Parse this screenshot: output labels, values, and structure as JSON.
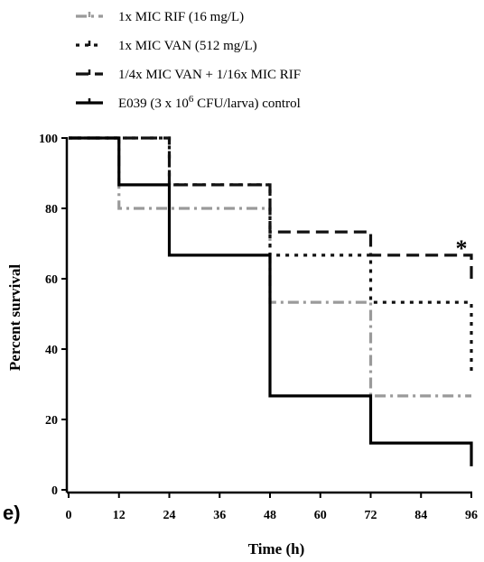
{
  "chart_data": {
    "type": "line",
    "step": true,
    "panel_label": "e)",
    "xlabel": "Time (h)",
    "ylabel": "Percent survival",
    "xlim": [
      0,
      96
    ],
    "ylim": [
      0,
      100
    ],
    "xticks": [
      0,
      12,
      24,
      36,
      48,
      60,
      72,
      84,
      96
    ],
    "yticks": [
      0,
      20,
      40,
      60,
      80,
      100
    ],
    "grid": false,
    "legend_position": "top-left",
    "annotation": "*",
    "series": [
      {
        "name": "1x MIC RIF (16 mg/L)",
        "color": "#9a9a9a",
        "dash": "dash-dot",
        "points": [
          [
            0,
            100
          ],
          [
            12,
            100
          ],
          [
            12,
            80
          ],
          [
            48,
            80
          ],
          [
            48,
            53.3
          ],
          [
            72,
            53.3
          ],
          [
            72,
            26.7
          ],
          [
            96,
            26.7
          ]
        ]
      },
      {
        "name": "1x MIC VAN (512 mg/L)",
        "color": "#111111",
        "dash": "dot",
        "points": [
          [
            0,
            100
          ],
          [
            24,
            100
          ],
          [
            24,
            86.7
          ],
          [
            48,
            86.7
          ],
          [
            48,
            66.7
          ],
          [
            72,
            66.7
          ],
          [
            72,
            53.3
          ],
          [
            96,
            53.3
          ],
          [
            96,
            33.3
          ]
        ]
      },
      {
        "name": "1/4x MIC VAN + 1/16x MIC RIF",
        "color": "#111111",
        "dash": "dash",
        "points": [
          [
            0,
            100
          ],
          [
            24,
            100
          ],
          [
            24,
            86.7
          ],
          [
            48,
            86.7
          ],
          [
            48,
            73.3
          ],
          [
            72,
            73.3
          ],
          [
            72,
            66.7
          ],
          [
            96,
            66.7
          ],
          [
            96,
            60
          ]
        ]
      },
      {
        "name": "E039 control",
        "legend_prefix": "E039 (3 x 10",
        "legend_sup": "6",
        "legend_suffix": " CFU/larva) control",
        "color": "#000000",
        "dash": "solid",
        "points": [
          [
            0,
            100
          ],
          [
            12,
            100
          ],
          [
            12,
            86.7
          ],
          [
            24,
            86.7
          ],
          [
            24,
            66.7
          ],
          [
            48,
            66.7
          ],
          [
            48,
            26.7
          ],
          [
            72,
            26.7
          ],
          [
            72,
            13.3
          ],
          [
            96,
            13.3
          ],
          [
            96,
            6.7
          ]
        ]
      }
    ]
  }
}
